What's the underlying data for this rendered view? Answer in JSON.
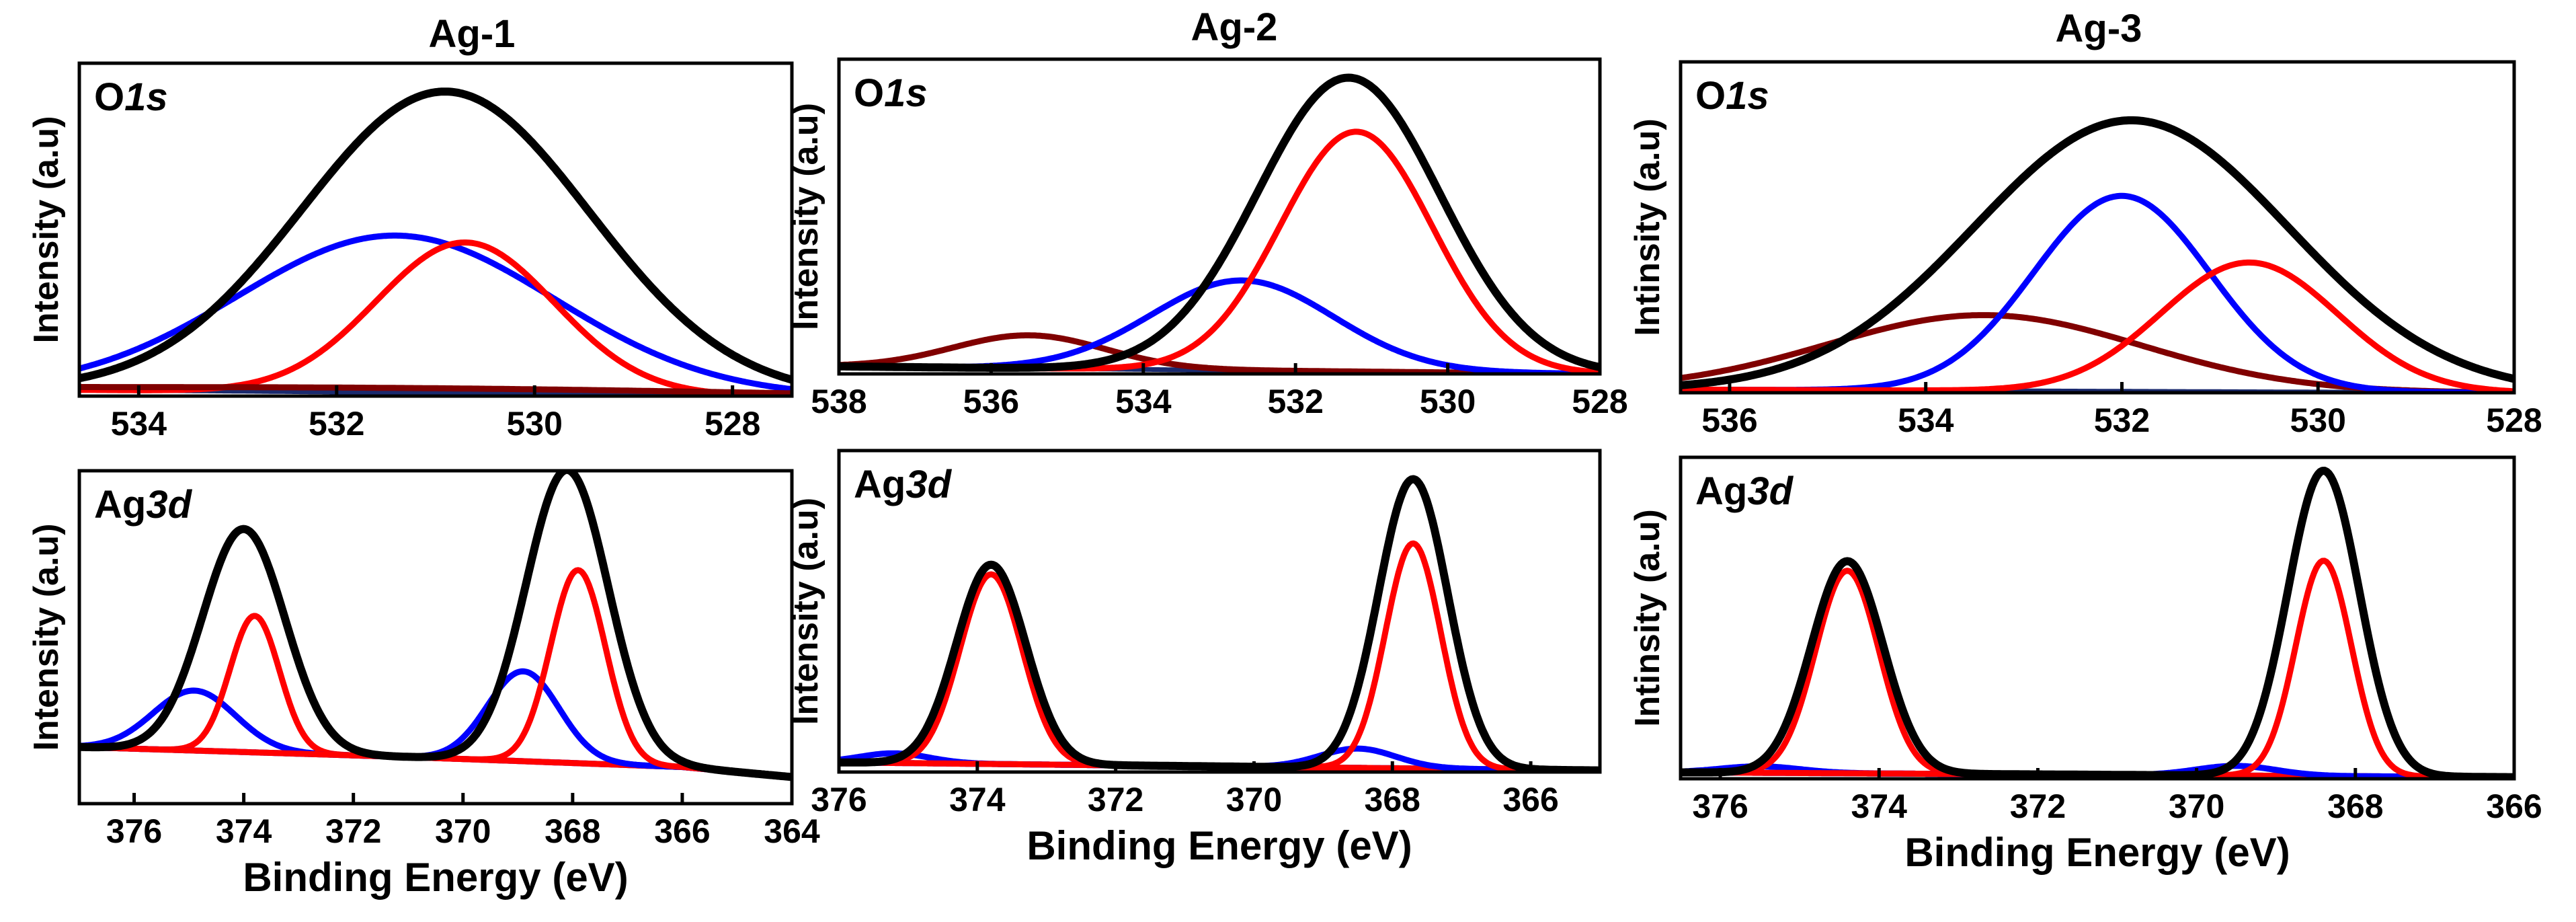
{
  "colors": {
    "envelope": "#000000",
    "component_red": "#ff0000",
    "component_blue": "#0000ff",
    "component_darkred": "#800000",
    "background_line": "#1a2a6e"
  },
  "column_titles": [
    "Ag-1",
    "Ag-2",
    "Ag-3"
  ],
  "chart_data": [
    {
      "type": "line",
      "column": 0,
      "row": 0,
      "title": "Ag-1",
      "label_main": "O",
      "label_sub": "1s",
      "xlabel": "",
      "ylabel": "Intensity (a.u)",
      "xlim": [
        534.6,
        527.4
      ],
      "ylim": [
        0,
        1.06
      ],
      "xticks": [
        534,
        532,
        530,
        528
      ],
      "background": [
        {
          "x": 534.6,
          "y": 0.02
        },
        {
          "x": 527.4,
          "y": 0.0
        }
      ],
      "components": [
        {
          "color": "component_blue",
          "center": 531.4,
          "height": 0.5,
          "width": 1.6
        },
        {
          "color": "component_red",
          "center": 530.7,
          "height": 0.48,
          "width": 0.9
        },
        {
          "color": "component_darkred",
          "center": 531.0,
          "height": 0.015,
          "width": 3.5
        }
      ],
      "envelope": {
        "center": 530.9,
        "height": 0.96,
        "width": 1.45
      }
    },
    {
      "type": "line",
      "column": 1,
      "row": 0,
      "title": "Ag-2",
      "label_main": "O",
      "label_sub": "1s",
      "xlabel": "",
      "ylabel": "Intensity (a.u)",
      "xlim": [
        538,
        528
      ],
      "ylim": [
        0,
        1.05
      ],
      "xticks": [
        538,
        536,
        534,
        532,
        530,
        528
      ],
      "background": [
        {
          "x": 538,
          "y": 0.025
        },
        {
          "x": 528,
          "y": 0.0
        }
      ],
      "components": [
        {
          "color": "component_darkred",
          "center": 535.5,
          "height": 0.11,
          "width": 1.0
        },
        {
          "color": "component_blue",
          "center": 532.7,
          "height": 0.3,
          "width": 1.2
        },
        {
          "color": "component_red",
          "center": 531.2,
          "height": 0.8,
          "width": 1.0
        }
      ],
      "envelope": {
        "center": 531.3,
        "height": 0.98,
        "width": 1.2
      }
    },
    {
      "type": "line",
      "column": 2,
      "row": 0,
      "title": "Ag-3",
      "label_main": "O",
      "label_sub": "1s",
      "xlabel": "",
      "ylabel": "Intinsity (a.u)",
      "xlim": [
        536.5,
        528
      ],
      "ylim": [
        0,
        1.05
      ],
      "xticks": [
        536,
        534,
        532,
        530,
        528
      ],
      "background": [
        {
          "x": 536.5,
          "y": 0.01
        },
        {
          "x": 528,
          "y": 0.0
        }
      ],
      "components": [
        {
          "color": "component_darkred",
          "center": 533.4,
          "height": 0.24,
          "width": 1.6
        },
        {
          "color": "component_blue",
          "center": 532.0,
          "height": 0.62,
          "width": 0.9
        },
        {
          "color": "component_red",
          "center": 530.7,
          "height": 0.41,
          "width": 0.9
        }
      ],
      "envelope": {
        "center": 531.9,
        "height": 0.86,
        "width": 1.6
      }
    },
    {
      "type": "line",
      "column": 0,
      "row": 1,
      "title": "",
      "label_main": "Ag",
      "label_sub": "3d",
      "xlabel": "Binding Energy (eV)",
      "ylabel": "Intensity (a.u)",
      "xlim": [
        377,
        364
      ],
      "ylim": [
        0,
        1.0
      ],
      "xticks": [
        376,
        374,
        372,
        370,
        368,
        366,
        364
      ],
      "background": [
        {
          "x": 377,
          "y": 0.17
        },
        {
          "x": 371,
          "y": 0.14
        },
        {
          "x": 366,
          "y": 0.11
        },
        {
          "x": 364,
          "y": 0.08
        }
      ],
      "components": [
        {
          "color": "component_blue",
          "center": 374.9,
          "height": 0.18,
          "width": 0.75
        },
        {
          "color": "component_red",
          "center": 373.8,
          "height": 0.41,
          "width": 0.45
        },
        {
          "color": "component_blue",
          "center": 368.9,
          "height": 0.27,
          "width": 0.65
        },
        {
          "color": "component_red",
          "center": 367.9,
          "height": 0.58,
          "width": 0.5
        }
      ],
      "envelope_peaks": [
        {
          "center": 374.0,
          "height": 0.67,
          "width": 0.75
        },
        {
          "center": 368.1,
          "height": 0.88,
          "width": 0.75
        }
      ]
    },
    {
      "type": "line",
      "column": 1,
      "row": 1,
      "title": "",
      "label_main": "Ag",
      "label_sub": "3d",
      "xlabel": "Binding Energy (eV)",
      "ylabel": "Intensity (a.u)",
      "xlim": [
        376,
        365
      ],
      "ylim": [
        0,
        1.0
      ],
      "xticks": [
        376,
        374,
        372,
        370,
        368,
        366
      ],
      "background": [
        {
          "x": 376,
          "y": 0.03
        },
        {
          "x": 365,
          "y": 0.005
        }
      ],
      "components": [
        {
          "color": "component_blue",
          "center": 375.2,
          "height": 0.03,
          "width": 0.5
        },
        {
          "color": "component_red",
          "center": 373.8,
          "height": 0.59,
          "width": 0.45
        },
        {
          "color": "component_blue",
          "center": 368.5,
          "height": 0.06,
          "width": 0.55
        },
        {
          "color": "component_red",
          "center": 367.7,
          "height": 0.7,
          "width": 0.4
        }
      ],
      "envelope_peaks": [
        {
          "center": 373.8,
          "height": 0.62,
          "width": 0.5
        },
        {
          "center": 367.7,
          "height": 0.9,
          "width": 0.5
        }
      ]
    },
    {
      "type": "line",
      "column": 2,
      "row": 1,
      "title": "",
      "label_main": "Ag",
      "label_sub": "3d",
      "xlabel": "Binding Energy (eV)",
      "ylabel": "Intinsity (a.u)",
      "xlim": [
        376.5,
        366
      ],
      "ylim": [
        0,
        1.0
      ],
      "xticks": [
        376,
        374,
        372,
        370,
        368,
        366
      ],
      "background": [
        {
          "x": 376.5,
          "y": 0.02
        },
        {
          "x": 366,
          "y": 0.005
        }
      ],
      "components": [
        {
          "color": "component_blue",
          "center": 375.5,
          "height": 0.02,
          "width": 0.5
        },
        {
          "color": "component_red",
          "center": 374.4,
          "height": 0.63,
          "width": 0.4
        },
        {
          "color": "component_blue",
          "center": 369.5,
          "height": 0.03,
          "width": 0.5
        },
        {
          "color": "component_red",
          "center": 368.4,
          "height": 0.67,
          "width": 0.35
        }
      ],
      "envelope_peaks": [
        {
          "center": 374.4,
          "height": 0.66,
          "width": 0.45
        },
        {
          "center": 368.4,
          "height": 0.95,
          "width": 0.45
        }
      ]
    }
  ]
}
